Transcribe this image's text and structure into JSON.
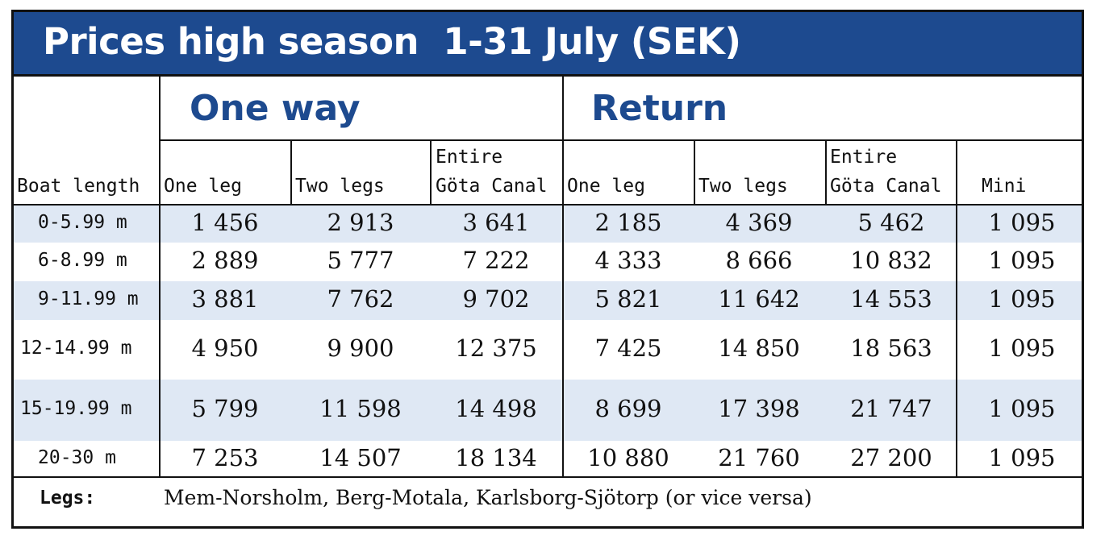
{
  "title": "Prices high season  1-31 July (SEK)",
  "groups": {
    "one_way": "One way",
    "return": "Return"
  },
  "columns": {
    "boat_length": "Boat length",
    "ow_one_leg": "One leg",
    "ow_two_legs": "Two legs",
    "ow_entire_1": "Entire",
    "ow_entire_2": "Göta Canal",
    "rt_one_leg": "One leg",
    "rt_two_legs": "Two legs",
    "rt_entire_1": "Entire",
    "rt_entire_2": "Göta Canal",
    "mini_trip": "Mini trip"
  },
  "rows": [
    {
      "length": "0-5.99 m",
      "values": [
        "1 456",
        "2 913",
        "3 641",
        "2 185",
        "4 369",
        "5 462",
        "1 095"
      ]
    },
    {
      "length": "6-8.99 m",
      "values": [
        "2 889",
        "5 777",
        "7 222",
        "4 333",
        "8 666",
        "10 832",
        "1 095"
      ]
    },
    {
      "length": "9-11.99 m",
      "values": [
        "3 881",
        "7 762",
        "9 702",
        "5 821",
        "11 642",
        "14 553",
        "1 095"
      ]
    },
    {
      "length": "12-14.99 m",
      "values": [
        "4 950",
        "9 900",
        "12 375",
        "7 425",
        "14 850",
        "18 563",
        "1 095"
      ]
    },
    {
      "length": "15-19.99 m",
      "values": [
        "5 799",
        "11 598",
        "14 498",
        "8 699",
        "17 398",
        "21 747",
        "1 095"
      ]
    },
    {
      "length": "20-30 m",
      "values": [
        "7 253",
        "14 507",
        "18 134",
        "10 880",
        "21 760",
        "27 200",
        "1 095"
      ]
    }
  ],
  "footer": {
    "legs_label": "Legs:",
    "legs_text": "Mem-Norsholm, Berg-Motala, Karlsborg-Sjötorp (or vice versa)"
  },
  "colors": {
    "title_bg": "#1d4a8f",
    "group_title": "#1d4a8f",
    "row_shade": "#dfe8f4"
  }
}
